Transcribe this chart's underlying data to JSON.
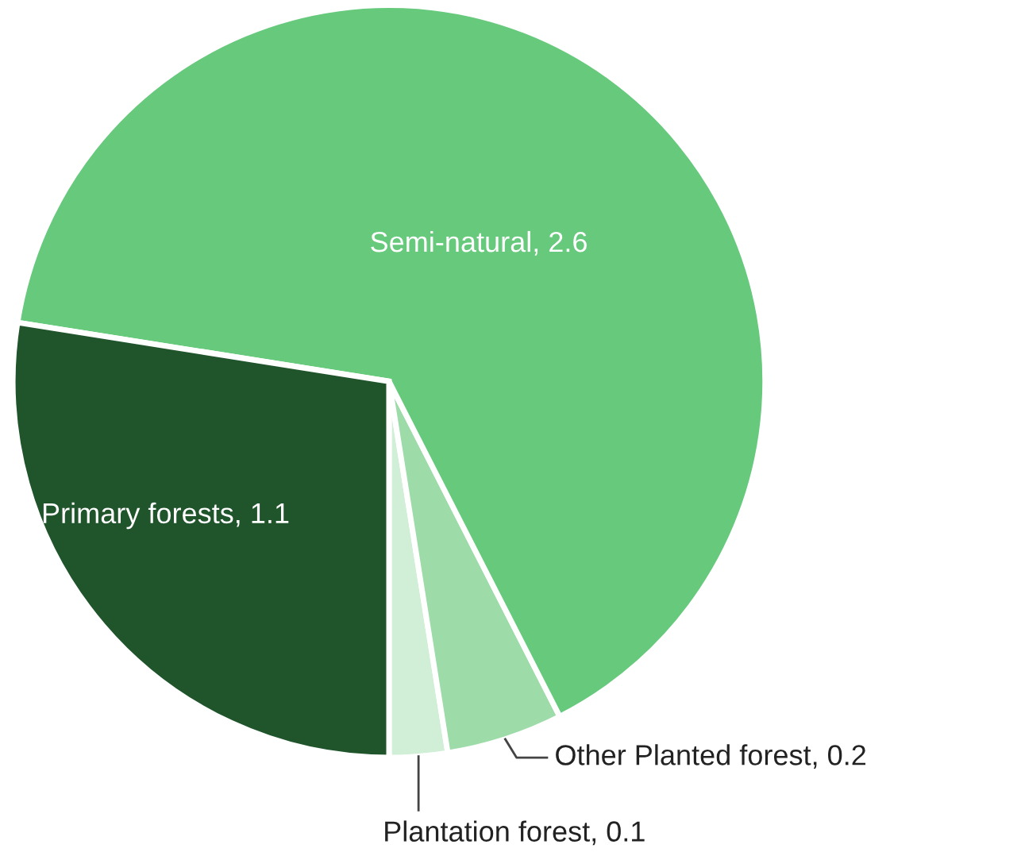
{
  "chart_data": {
    "type": "pie",
    "categories": [
      "Plantation forest",
      "Other Planted forest",
      "Semi-natural",
      "Primary forests"
    ],
    "values": [
      0.1,
      0.2,
      2.6,
      1.1
    ],
    "colors": [
      "#d0efd6",
      "#9ddba8",
      "#66c97c",
      "#20552c"
    ],
    "value_labels": [
      ", 0.1",
      ", 0.2",
      ", 2.6",
      ", 1.1"
    ]
  }
}
